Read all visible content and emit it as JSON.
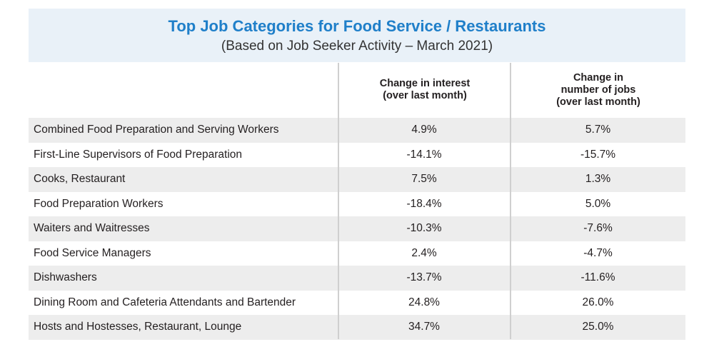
{
  "header": {
    "title": "Top Job Categories for Food Service / Restaurants",
    "subtitle": "(Based on Job Seeker Activity – March 2021)"
  },
  "columns": [
    "Change in interest\n(over last month)",
    "Change in\nnumber of jobs\n(over last month)"
  ],
  "chart_data": {
    "type": "table",
    "title": "Top Job Categories for Food Service / Restaurants",
    "subtitle": "(Based on Job Seeker Activity – March 2021)",
    "columns": [
      "Change in interest (over last month)",
      "Change in number of jobs (over last month)"
    ],
    "rows": [
      {
        "label": "Combined Food Preparation and Serving Workers",
        "values": [
          "4.9%",
          "5.7%"
        ]
      },
      {
        "label": "First-Line Supervisors of Food Preparation",
        "values": [
          "-14.1%",
          "-15.7%"
        ]
      },
      {
        "label": "Cooks, Restaurant",
        "values": [
          "7.5%",
          "1.3%"
        ]
      },
      {
        "label": "Food Preparation Workers",
        "values": [
          "-18.4%",
          "5.0%"
        ]
      },
      {
        "label": "Waiters and Waitresses",
        "values": [
          "-10.3%",
          "-7.6%"
        ]
      },
      {
        "label": "Food Service Managers",
        "values": [
          "2.4%",
          "-4.7%"
        ]
      },
      {
        "label": "Dishwashers",
        "values": [
          "-13.7%",
          "-11.6%"
        ]
      },
      {
        "label": "Dining Room and Cafeteria Attendants and Bartender",
        "values": [
          "24.8%",
          "26.0%"
        ]
      },
      {
        "label": "Hosts and Hostesses, Restaurant, Lounge",
        "values": [
          "34.7%",
          "25.0%"
        ]
      }
    ]
  },
  "colors": {
    "title": "#1f7fc9",
    "header_bg": "#e9f1f8",
    "row_shade": "#ededed",
    "divider": "#cfcfcf"
  }
}
